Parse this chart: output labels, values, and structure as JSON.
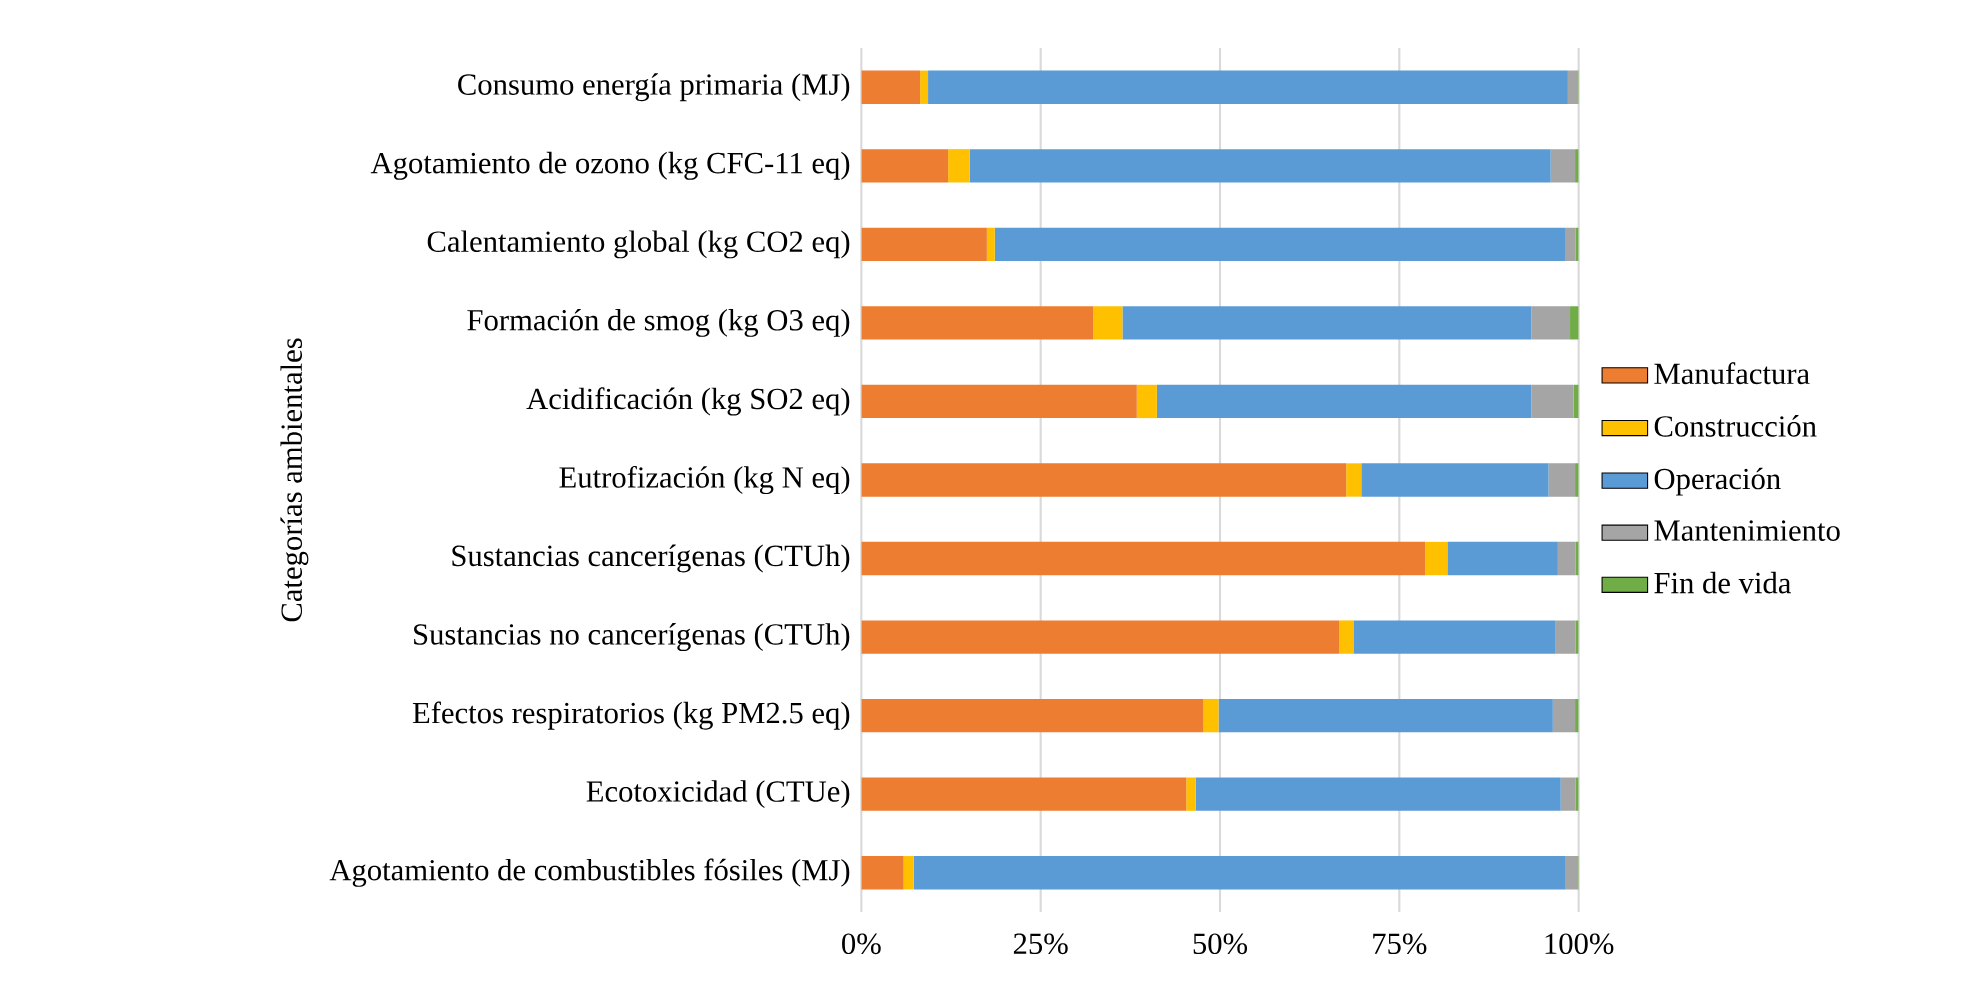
{
  "chart_data": {
    "type": "bar",
    "orientation": "horizontal",
    "stacked": true,
    "ylabel": "Categorías ambientales",
    "categories": [
      "Consumo energía primaria (MJ)",
      "Agotamiento de ozono (kg CFC-11 eq)",
      "Calentamiento global (kg CO2 eq)",
      "Formación de smog (kg O3 eq)",
      "Acidificación (kg SO2 eq)",
      "Eutrofización (kg N eq)",
      "Sustancias cancerígenas (CTUh)",
      "Sustancias no cancerígenas (CTUh)",
      "Efectos respiratorios (kg PM2.5 eq)",
      "Ecotoxicidad (CTUe)",
      "Agotamiento de combustibles fósiles (MJ)"
    ],
    "series": [
      {
        "name": "Manufactura",
        "color": "#ed7d31",
        "values": [
          8.2,
          12.1,
          17.5,
          32.3,
          38.4,
          67.6,
          78.6,
          66.6,
          47.7,
          45.3,
          5.9
        ]
      },
      {
        "name": "Construcción",
        "color": "#ffc000",
        "values": [
          1.1,
          3.0,
          1.1,
          4.1,
          2.8,
          2.1,
          3.1,
          2.0,
          2.1,
          1.3,
          1.4
        ]
      },
      {
        "name": "Operación",
        "color": "#5b9bd5",
        "values": [
          89.2,
          81.0,
          79.6,
          57.0,
          52.2,
          26.1,
          15.4,
          28.2,
          46.6,
          50.9,
          90.9
        ]
      },
      {
        "name": "Mantenimiento",
        "color": "#a5a5a5",
        "values": [
          1.3,
          3.4,
          1.4,
          5.4,
          5.9,
          3.7,
          2.5,
          2.8,
          3.1,
          2.1,
          1.6
        ]
      },
      {
        "name": "Fin de vida",
        "color": "#70ad47",
        "values": [
          0.2,
          0.5,
          0.4,
          1.2,
          0.7,
          0.5,
          0.4,
          0.4,
          0.5,
          0.4,
          0.2
        ]
      }
    ],
    "xlim": [
      0,
      100
    ],
    "xticks": [
      {
        "value": 0,
        "label": "0%"
      },
      {
        "value": 25,
        "label": "25%"
      },
      {
        "value": 50,
        "label": "50%"
      },
      {
        "value": 75,
        "label": "75%"
      },
      {
        "value": 100,
        "label": "100%"
      }
    ],
    "grid": "x",
    "legend": "right"
  }
}
